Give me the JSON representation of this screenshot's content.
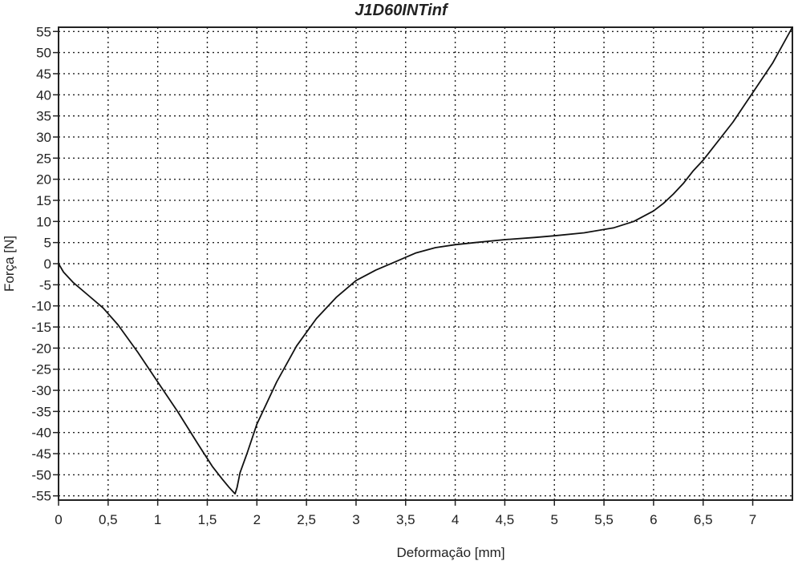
{
  "chart_data": {
    "type": "line",
    "title": "J1D60INTinf",
    "xlabel": "Deformação [mm]",
    "ylabel": "Força [N]",
    "xlim": [
      0,
      7.4
    ],
    "ylim": [
      -56,
      56
    ],
    "x_ticks": [
      0,
      0.5,
      1,
      1.5,
      2,
      2.5,
      3,
      3.5,
      4,
      4.5,
      5,
      5.5,
      6,
      6.5,
      7
    ],
    "x_tick_labels": [
      "0",
      "0,5",
      "1",
      "1,5",
      "2",
      "2,5",
      "3",
      "3,5",
      "4",
      "4,5",
      "5",
      "5,5",
      "6",
      "6,5",
      "7"
    ],
    "y_ticks": [
      55,
      50,
      45,
      40,
      35,
      30,
      25,
      20,
      15,
      10,
      5,
      0,
      -5,
      -10,
      -15,
      -20,
      -25,
      -30,
      -35,
      -40,
      -45,
      -50,
      -55
    ],
    "y_tick_labels": [
      "55",
      "50",
      "45",
      "40",
      "35",
      "30",
      "25",
      "20",
      "15",
      "10",
      "5",
      "0",
      "-5",
      "-10",
      "-15",
      "-20",
      "-25",
      "-30",
      "-35",
      "-40",
      "-45",
      "-50",
      "-55"
    ],
    "grid": true,
    "legend": "none",
    "series": [
      {
        "color": "#111111",
        "x": [
          0,
          0.05,
          0.15,
          0.3,
          0.45,
          0.6,
          0.8,
          1.0,
          1.2,
          1.4,
          1.55,
          1.65,
          1.72,
          1.76,
          1.78,
          1.8,
          1.83,
          1.9,
          2.0,
          2.2,
          2.4,
          2.6,
          2.8,
          3.0,
          3.2,
          3.4,
          3.6,
          3.8,
          4.0,
          4.2,
          4.5,
          4.8,
          5.0,
          5.3,
          5.6,
          5.8,
          6.0,
          6.1,
          6.2,
          6.3,
          6.4,
          6.5,
          6.6,
          6.8,
          7.0,
          7.2,
          7.4
        ],
        "y": [
          0,
          -2,
          -4.5,
          -7.5,
          -10.5,
          -14.5,
          -21,
          -28,
          -35,
          -42.5,
          -48,
          -51,
          -53,
          -54,
          -54.5,
          -53,
          -49.5,
          -45,
          -38,
          -28,
          -19.5,
          -13,
          -8,
          -4,
          -1.5,
          0.5,
          2.5,
          3.8,
          4.5,
          5,
          5.7,
          6.2,
          6.6,
          7.3,
          8.5,
          10,
          12.5,
          14.3,
          16.5,
          19,
          22,
          24.5,
          27.5,
          33.5,
          40.5,
          47.5,
          56
        ]
      }
    ]
  }
}
